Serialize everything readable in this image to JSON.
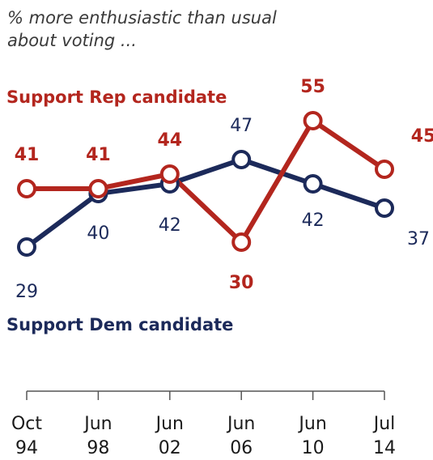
{
  "chart_data": {
    "type": "line",
    "subtitle_lines": [
      "% more enthusiastic than usual",
      "about voting ..."
    ],
    "categories": [
      [
        "Oct",
        "94"
      ],
      [
        "Jun",
        "98"
      ],
      [
        "Jun",
        "02"
      ],
      [
        "Jun",
        "06"
      ],
      [
        "Jun",
        "10"
      ],
      [
        "Jul",
        "14"
      ]
    ],
    "series": [
      {
        "name": "Support Rep candidate",
        "key": "rep",
        "color": "#b3261e",
        "values": [
          41,
          41,
          44,
          30,
          55,
          45
        ],
        "labels": [
          "41",
          "41",
          "44",
          "30",
          "55",
          "45"
        ]
      },
      {
        "name": "Support Dem candidate",
        "key": "dem",
        "color": "#1c2a5a",
        "values": [
          29,
          40,
          42,
          47,
          42,
          37
        ],
        "labels": [
          "29",
          "40",
          "42",
          "47",
          "42",
          "37"
        ]
      }
    ],
    "legend_placement": "inline (Rep above lines, Dem below lines)",
    "grid": false
  }
}
